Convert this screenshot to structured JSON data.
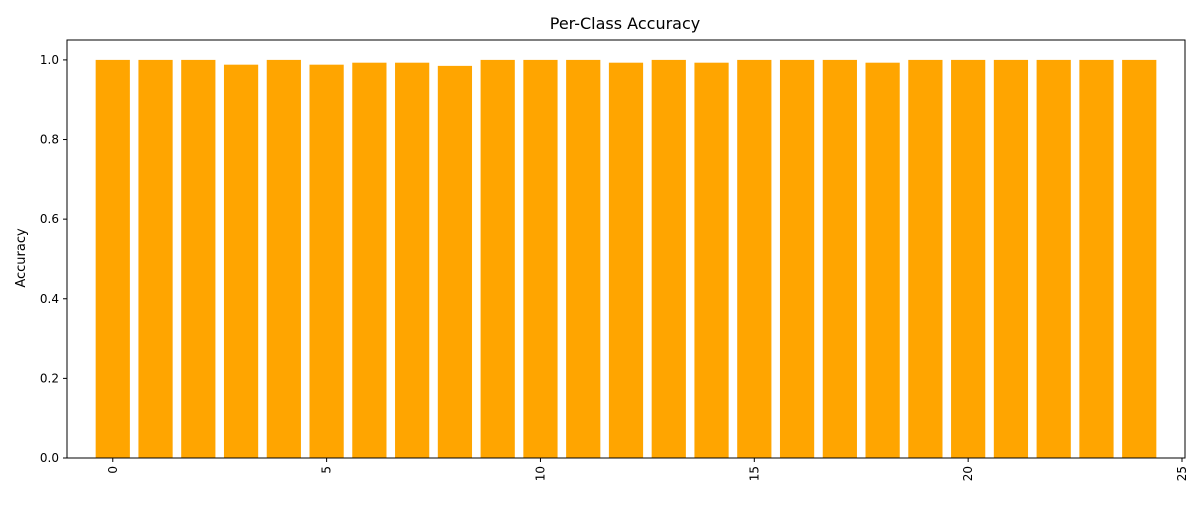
{
  "chart_data": {
    "type": "bar",
    "title": "Per-Class Accuracy",
    "xlabel": "",
    "ylabel": "Accuracy",
    "categories": [
      "0",
      "1",
      "2",
      "3",
      "4",
      "5",
      "6",
      "7",
      "8",
      "9",
      "10",
      "11",
      "12",
      "13",
      "14",
      "15",
      "16",
      "17",
      "18",
      "19",
      "20",
      "21",
      "22",
      "23",
      "24"
    ],
    "values": [
      1.0,
      1.0,
      1.0,
      0.988,
      1.0,
      0.988,
      0.993,
      0.993,
      0.985,
      1.0,
      1.0,
      1.0,
      0.993,
      1.0,
      0.993,
      1.0,
      1.0,
      1.0,
      0.993,
      1.0,
      1.0,
      1.0,
      1.0,
      1.0,
      1.0
    ],
    "xlim": [
      -1.07,
      25.07
    ],
    "ylim": [
      0,
      1.05
    ],
    "xticks": [
      0,
      5,
      10,
      15,
      20,
      25
    ],
    "xtick_labels": [
      "0",
      "5",
      "10",
      "15",
      "20",
      "25"
    ],
    "xtick_rotation_deg": 90,
    "yticks": [
      0.0,
      0.2,
      0.4,
      0.6,
      0.8,
      1.0
    ],
    "ytick_labels": [
      "0.0",
      "0.2",
      "0.4",
      "0.6",
      "0.8",
      "1.0"
    ],
    "bar_color": "#FFA500",
    "grid": false,
    "legend": "none"
  }
}
